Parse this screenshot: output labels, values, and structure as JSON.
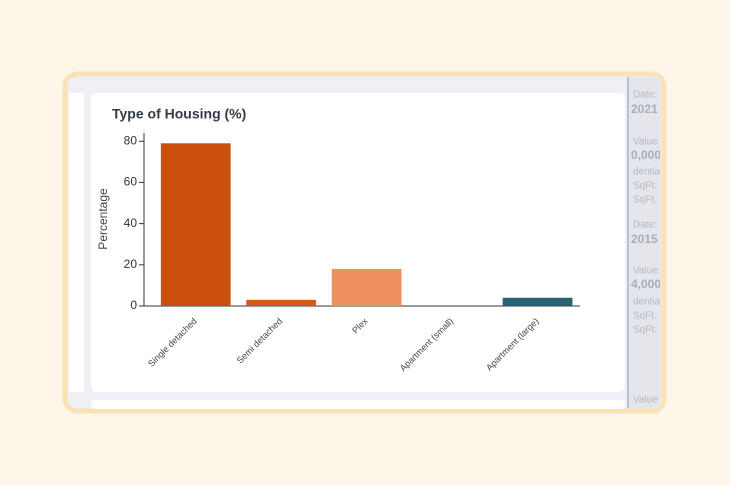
{
  "chart_data": {
    "type": "bar",
    "title": "Type of Housing (%)",
    "y_label": "Percentage",
    "categories": [
      "Single detached",
      "Semi detached",
      "Plex",
      "Apartment (small)",
      "Apartment (large)"
    ],
    "values": [
      79,
      3,
      18,
      0,
      4
    ],
    "colors": [
      "#c94f0a",
      "#d3581a",
      "#ee915f",
      "#4a4a4a",
      "#2a6173"
    ],
    "ylim": [
      0,
      84
    ],
    "yticks": [
      0,
      20,
      40,
      60,
      80
    ]
  },
  "side_panel": {
    "texts": [
      "Date:",
      "2021",
      "Value",
      "0,000",
      "dential",
      "SqFt.",
      "SqFt.",
      "Date:",
      "2015",
      "Value",
      "4,000",
      "dential",
      "SqFt.",
      "SqFt.",
      "Value"
    ]
  }
}
